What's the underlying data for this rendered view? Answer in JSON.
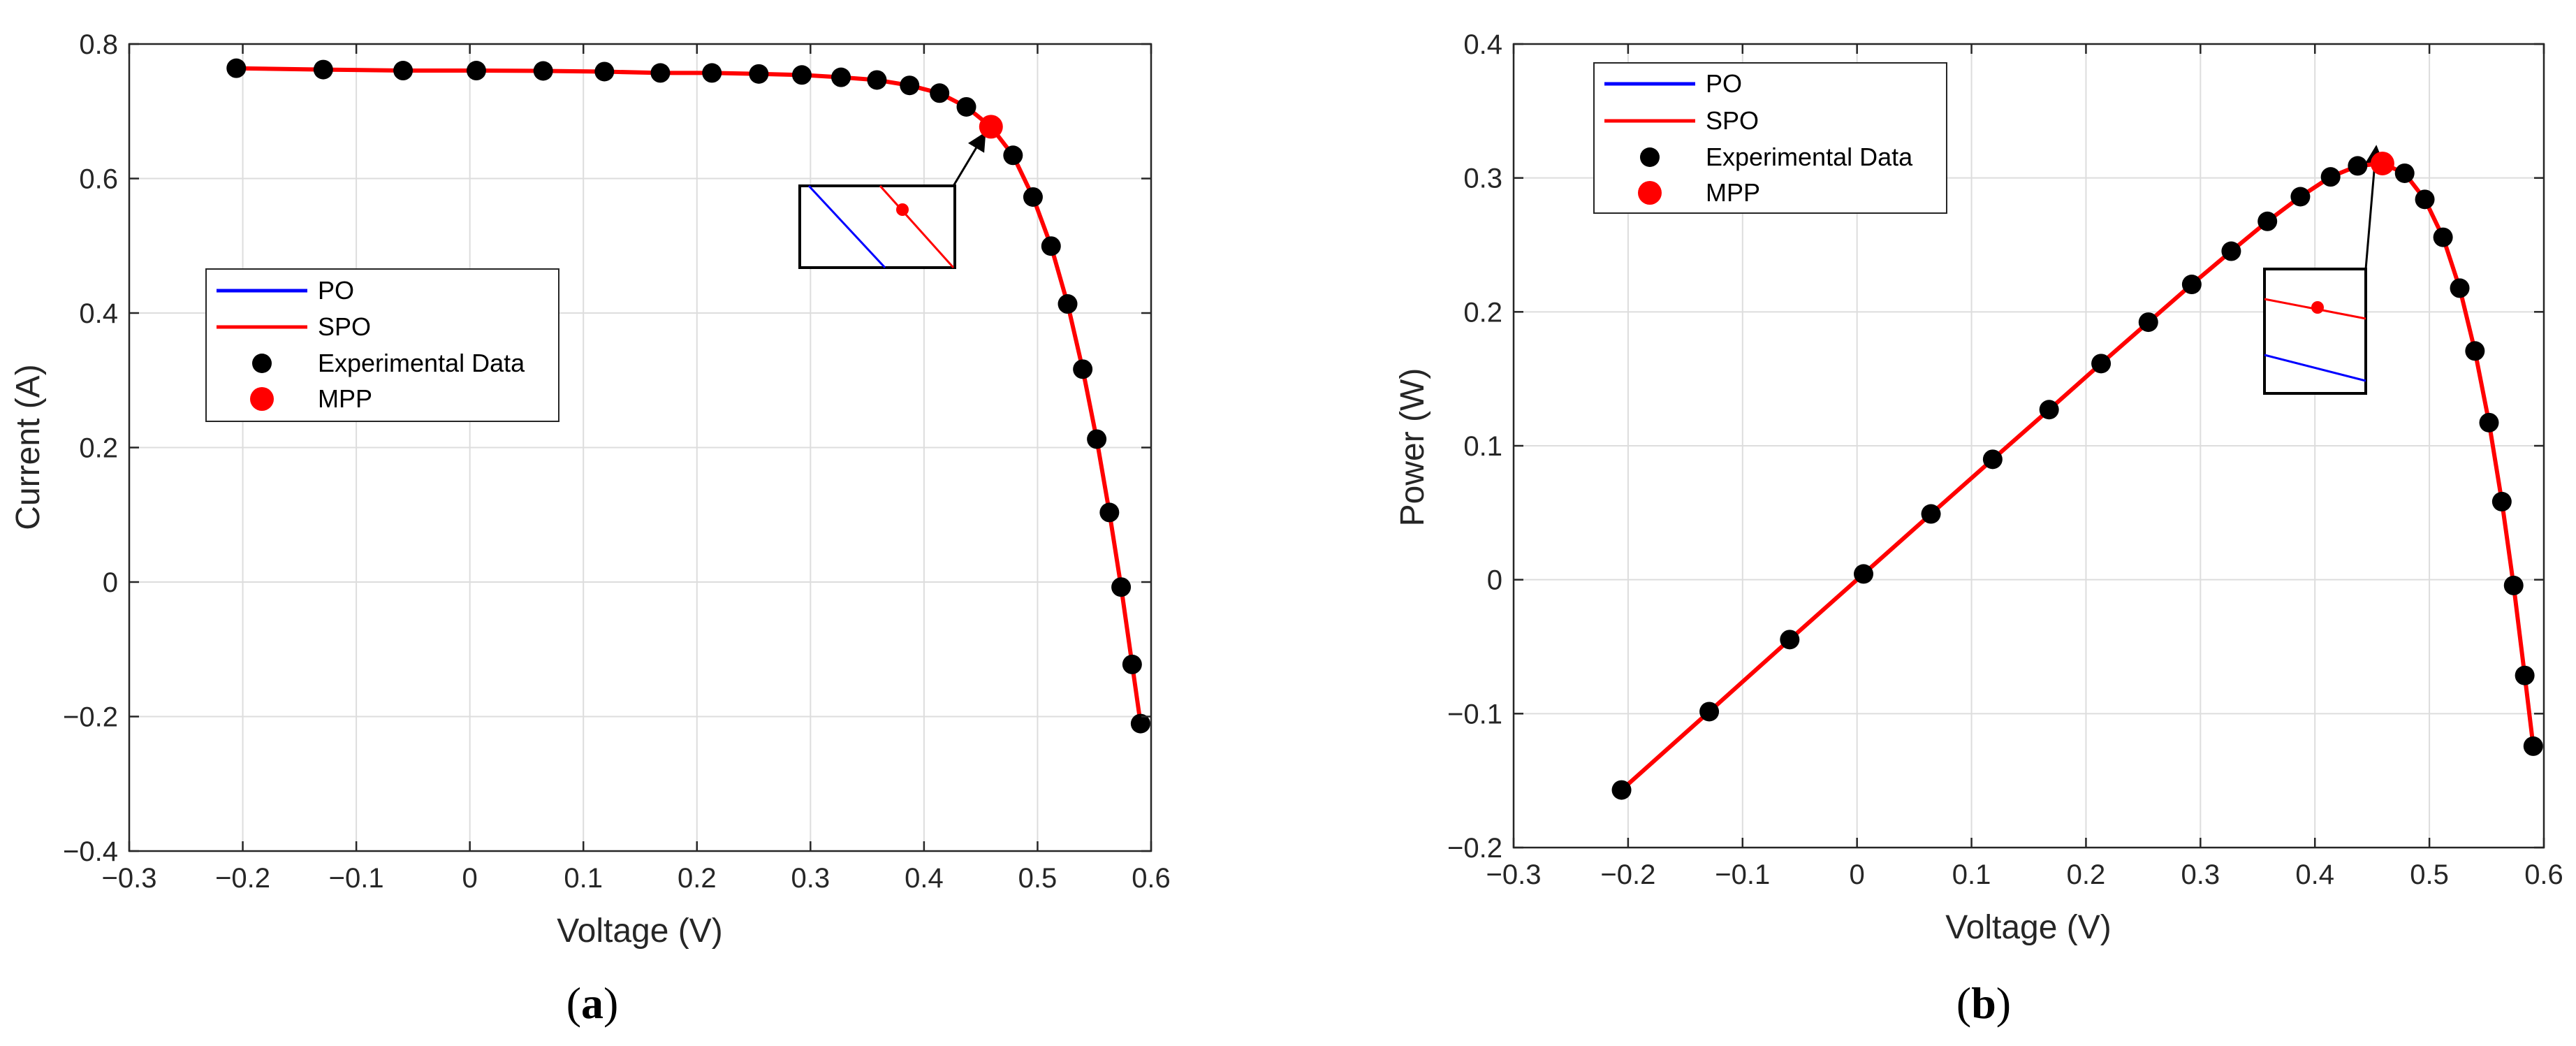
{
  "colors": {
    "po": "#0000ff",
    "spo": "#ff0000",
    "data": "#000000",
    "mpp": "#ff0000",
    "grid": "#dddddd",
    "axis": "#262626"
  },
  "chart_data": [
    {
      "type": "line",
      "panel_label": {
        "open": "(",
        "letter": "a",
        "close": ")"
      },
      "xlabel": "Voltage (V)",
      "ylabel": "Current (A)",
      "xlim": [
        -0.3,
        0.6
      ],
      "ylim": [
        -0.4,
        0.8
      ],
      "xticks": [
        -0.3,
        -0.2,
        -0.1,
        0,
        0.1,
        0.2,
        0.3,
        0.4,
        0.5,
        0.6
      ],
      "yticks": [
        -0.4,
        -0.2,
        0,
        0.2,
        0.4,
        0.6,
        0.8
      ],
      "xtick_labels": [
        "−0.3",
        "−0.2",
        "−0.1",
        "0",
        "0.1",
        "0.2",
        "0.3",
        "0.4",
        "0.5",
        "0.6"
      ],
      "ytick_labels": [
        "−0.4",
        "−0.2",
        "0",
        "0.2",
        "0.4",
        "0.6",
        "0.8"
      ],
      "grid": true,
      "legend": {
        "placement": "middle-left",
        "entries": [
          "PO",
          "SPO",
          "Experimental Data",
          "MPP"
        ]
      },
      "series": [
        {
          "name": "PO",
          "style": "line",
          "x": [
            -0.2057,
            -0.1291,
            -0.0588,
            0.0057,
            0.0646,
            0.1185,
            0.1678,
            0.2132,
            0.2545,
            0.2924,
            0.3269,
            0.3585,
            0.3873,
            0.4137,
            0.4373,
            0.459,
            0.4784,
            0.496,
            0.5119,
            0.5265,
            0.5398,
            0.5521,
            0.5633,
            0.5736,
            0.5833,
            0.5907
          ],
          "y": [
            0.764,
            0.762,
            0.7605,
            0.7605,
            0.76,
            0.759,
            0.757,
            0.757,
            0.7555,
            0.754,
            0.7505,
            0.7465,
            0.7385,
            0.727,
            0.7065,
            0.677,
            0.6345,
            0.5725,
            0.4995,
            0.4135,
            0.3165,
            0.2125,
            0.1035,
            -0.0075,
            -0.1225,
            -0.2105
          ]
        },
        {
          "name": "SPO",
          "style": "line",
          "x": [
            -0.2057,
            -0.1291,
            -0.0588,
            0.0057,
            0.0646,
            0.1185,
            0.1678,
            0.2132,
            0.2545,
            0.2924,
            0.3269,
            0.3585,
            0.3873,
            0.4137,
            0.4373,
            0.459,
            0.4784,
            0.496,
            0.5119,
            0.5265,
            0.5398,
            0.5521,
            0.5633,
            0.5736,
            0.5833,
            0.5907
          ],
          "y": [
            0.764,
            0.762,
            0.7605,
            0.7605,
            0.76,
            0.759,
            0.757,
            0.757,
            0.7555,
            0.754,
            0.7505,
            0.7465,
            0.7385,
            0.727,
            0.7065,
            0.677,
            0.6345,
            0.5725,
            0.4995,
            0.4135,
            0.3165,
            0.2125,
            0.1035,
            -0.0075,
            -0.1225,
            -0.2105
          ]
        },
        {
          "name": "Experimental Data",
          "style": "markers",
          "x": [
            -0.2057,
            -0.1291,
            -0.0588,
            0.0057,
            0.0646,
            0.1185,
            0.1678,
            0.2132,
            0.2545,
            0.2924,
            0.3269,
            0.3585,
            0.3873,
            0.4137,
            0.4373,
            0.4784,
            0.496,
            0.5119,
            0.5265,
            0.5398,
            0.5521,
            0.5633,
            0.5736,
            0.5833,
            0.5907
          ],
          "y": [
            0.764,
            0.762,
            0.7605,
            0.7605,
            0.76,
            0.759,
            0.757,
            0.757,
            0.7555,
            0.754,
            0.7505,
            0.7465,
            0.7385,
            0.727,
            0.7065,
            0.6345,
            0.5725,
            0.4995,
            0.4135,
            0.3165,
            0.2125,
            0.1035,
            -0.0075,
            -0.1225,
            -0.2105
          ]
        },
        {
          "name": "MPP",
          "style": "marker",
          "x": [
            0.459
          ],
          "y": [
            0.677
          ]
        }
      ]
    },
    {
      "type": "line",
      "panel_label": {
        "open": "(",
        "letter": "b",
        "close": ")"
      },
      "xlabel": "Voltage (V)",
      "ylabel": "Power (W)",
      "xlim": [
        -0.3,
        0.6
      ],
      "ylim": [
        -0.2,
        0.4
      ],
      "xticks": [
        -0.3,
        -0.2,
        -0.1,
        0,
        0.1,
        0.2,
        0.3,
        0.4,
        0.5,
        0.6
      ],
      "yticks": [
        -0.2,
        -0.1,
        0,
        0.1,
        0.2,
        0.3,
        0.4
      ],
      "xtick_labels": [
        "−0.3",
        "−0.2",
        "−0.1",
        "0",
        "0.1",
        "0.2",
        "0.3",
        "0.4",
        "0.5",
        "0.6"
      ],
      "ytick_labels": [
        "−0.2",
        "−0.1",
        "0",
        "0.1",
        "0.2",
        "0.3",
        "0.4"
      ],
      "grid": true,
      "legend": {
        "placement": "top-left",
        "entries": [
          "PO",
          "SPO",
          "Experimental Data",
          "MPP"
        ]
      },
      "series": [
        {
          "name": "PO",
          "style": "line",
          "x": [
            -0.2057,
            -0.1291,
            -0.0588,
            0.0057,
            0.0646,
            0.1185,
            0.1678,
            0.2132,
            0.2545,
            0.2924,
            0.3269,
            0.3585,
            0.3873,
            0.4137,
            0.4373,
            0.459,
            0.4784,
            0.496,
            0.5119,
            0.5265,
            0.5398,
            0.5521,
            0.5633,
            0.5736,
            0.5833,
            0.5907
          ],
          "y": [
            -0.157,
            -0.0985,
            -0.0447,
            0.0043,
            0.0491,
            0.0899,
            0.127,
            0.1614,
            0.1923,
            0.2205,
            0.2453,
            0.2676,
            0.286,
            0.3008,
            0.309,
            0.3108,
            0.3035,
            0.284,
            0.2557,
            0.2177,
            0.1708,
            0.1173,
            0.0583,
            -0.0043,
            -0.0715,
            -0.1243
          ]
        },
        {
          "name": "SPO",
          "style": "line",
          "x": [
            -0.2057,
            -0.1291,
            -0.0588,
            0.0057,
            0.0646,
            0.1185,
            0.1678,
            0.2132,
            0.2545,
            0.2924,
            0.3269,
            0.3585,
            0.3873,
            0.4137,
            0.4373,
            0.459,
            0.4784,
            0.496,
            0.5119,
            0.5265,
            0.5398,
            0.5521,
            0.5633,
            0.5736,
            0.5833,
            0.5907
          ],
          "y": [
            -0.157,
            -0.0985,
            -0.0447,
            0.0043,
            0.0491,
            0.0899,
            0.127,
            0.1614,
            0.1923,
            0.2205,
            0.2453,
            0.2676,
            0.286,
            0.3008,
            0.309,
            0.3108,
            0.3035,
            0.284,
            0.2557,
            0.2177,
            0.1708,
            0.1173,
            0.0583,
            -0.0043,
            -0.0715,
            -0.1243
          ]
        },
        {
          "name": "Experimental Data",
          "style": "markers",
          "x": [
            -0.2057,
            -0.1291,
            -0.0588,
            0.0057,
            0.0646,
            0.1185,
            0.1678,
            0.2132,
            0.2545,
            0.2924,
            0.3269,
            0.3585,
            0.3873,
            0.4137,
            0.4373,
            0.4784,
            0.496,
            0.5119,
            0.5265,
            0.5398,
            0.5521,
            0.5633,
            0.5736,
            0.5833,
            0.5907
          ],
          "y": [
            -0.157,
            -0.0985,
            -0.0447,
            0.0043,
            0.0491,
            0.0899,
            0.127,
            0.1614,
            0.1923,
            0.2205,
            0.2453,
            0.2676,
            0.286,
            0.3008,
            0.309,
            0.3035,
            0.284,
            0.2557,
            0.2177,
            0.1708,
            0.1173,
            0.0583,
            -0.0043,
            -0.0715,
            -0.1243
          ]
        },
        {
          "name": "MPP",
          "style": "marker",
          "x": [
            0.459
          ],
          "y": [
            0.3108
          ]
        }
      ]
    }
  ]
}
